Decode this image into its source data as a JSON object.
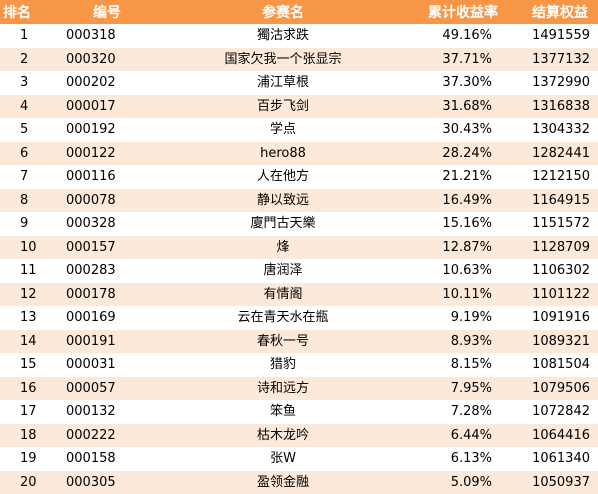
{
  "colors": {
    "header_bg": "#f79646",
    "header_text": "#ffffff",
    "stripe": "#fde9d9"
  },
  "headers": [
    "排名",
    "编号",
    "参赛名",
    "累计收益率",
    "结算权益"
  ],
  "rows": [
    {
      "rank": "1",
      "code": "000318",
      "name": "獨沽求跌",
      "return": "49.16%",
      "equity": "1491559"
    },
    {
      "rank": "2",
      "code": "000320",
      "name": "国家欠我一个张显宗",
      "return": "37.71%",
      "equity": "1377132"
    },
    {
      "rank": "3",
      "code": "000202",
      "name": "浦江草根",
      "return": "37.30%",
      "equity": "1372990"
    },
    {
      "rank": "4",
      "code": "000017",
      "name": "百步飞剑",
      "return": "31.68%",
      "equity": "1316838"
    },
    {
      "rank": "5",
      "code": "000192",
      "name": "学点",
      "return": "30.43%",
      "equity": "1304332"
    },
    {
      "rank": "6",
      "code": "000122",
      "name": "hero88",
      "return": "28.24%",
      "equity": "1282441"
    },
    {
      "rank": "7",
      "code": "000116",
      "name": "人在他方",
      "return": "21.21%",
      "equity": "1212150"
    },
    {
      "rank": "8",
      "code": "000078",
      "name": "静以致远",
      "return": "16.49%",
      "equity": "1164915"
    },
    {
      "rank": "9",
      "code": "000328",
      "name": "廈門古天樂",
      "return": "15.16%",
      "equity": "1151572"
    },
    {
      "rank": "10",
      "code": "000157",
      "name": "烽",
      "return": "12.87%",
      "equity": "1128709"
    },
    {
      "rank": "11",
      "code": "000283",
      "name": "唐润泽",
      "return": "10.63%",
      "equity": "1106302"
    },
    {
      "rank": "12",
      "code": "000178",
      "name": "有情阁",
      "return": "10.11%",
      "equity": "1101122"
    },
    {
      "rank": "13",
      "code": "000169",
      "name": "云在青天水在瓶",
      "return": "9.19%",
      "equity": "1091916"
    },
    {
      "rank": "14",
      "code": "000191",
      "name": "春秋一号",
      "return": "8.93%",
      "equity": "1089321"
    },
    {
      "rank": "15",
      "code": "000031",
      "name": "猎豹",
      "return": "8.15%",
      "equity": "1081504"
    },
    {
      "rank": "16",
      "code": "000057",
      "name": "诗和远方",
      "return": "7.95%",
      "equity": "1079506"
    },
    {
      "rank": "17",
      "code": "000132",
      "name": "笨鱼",
      "return": "7.28%",
      "equity": "1072842"
    },
    {
      "rank": "18",
      "code": "000222",
      "name": "枯木龙吟",
      "return": "6.44%",
      "equity": "1064416"
    },
    {
      "rank": "19",
      "code": "000158",
      "name": "张W",
      "return": "6.13%",
      "equity": "1061340"
    },
    {
      "rank": "20",
      "code": "000305",
      "name": "盈领金融",
      "return": "5.09%",
      "equity": "1050937"
    }
  ]
}
